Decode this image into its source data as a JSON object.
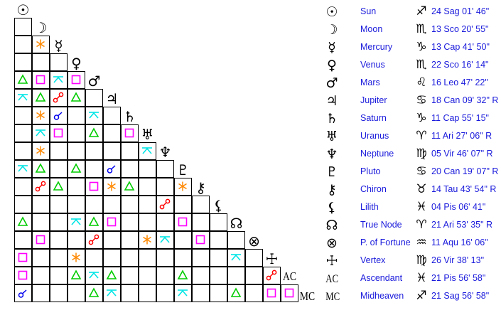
{
  "colors": {
    "trine": "#00cc00",
    "square": "#ff00ff",
    "quincunx": "#00e5e5",
    "opposition": "#ff0000",
    "conjunction": "#0000ee",
    "sextile": "#ff8800"
  },
  "grid": {
    "glyphs": [
      "☉",
      "☽",
      "☿",
      "♀",
      "♂",
      "♃",
      "♄",
      "♅",
      "♆",
      "♇",
      "⚷",
      "⚸",
      "☊",
      "⊗",
      "☩",
      "AC",
      "MC"
    ],
    "rows": [
      [
        ""
      ],
      [
        "",
        "sextile"
      ],
      [
        "",
        "",
        ""
      ],
      [
        "trine",
        "square",
        "quincunx",
        "square"
      ],
      [
        "quincunx",
        "trine",
        "opposition",
        "trine",
        ""
      ],
      [
        "",
        "sextile",
        "conjunction",
        "",
        "quincunx",
        ""
      ],
      [
        "",
        "quincunx",
        "square",
        "",
        "trine",
        "",
        "square"
      ],
      [
        "",
        "sextile",
        "",
        "",
        "",
        "",
        "",
        "quincunx"
      ],
      [
        "quincunx",
        "trine",
        "",
        "trine",
        "",
        "conjunction",
        "",
        "",
        ""
      ],
      [
        "",
        "opposition",
        "trine",
        "",
        "square",
        "sextile",
        "trine",
        "",
        "",
        "sextile"
      ],
      [
        "",
        "",
        "",
        "",
        "",
        "",
        "",
        "",
        "opposition",
        "",
        ""
      ],
      [
        "trine",
        "",
        "",
        "quincunx",
        "trine",
        "square",
        "",
        "",
        "",
        "square",
        "",
        ""
      ],
      [
        "",
        "square",
        "",
        "",
        "opposition",
        "",
        "",
        "sextile",
        "quincunx",
        "",
        "square",
        "",
        ""
      ],
      [
        "square",
        "",
        "",
        "sextile",
        "",
        "",
        "",
        "",
        "",
        "",
        "",
        "",
        "quincunx",
        ""
      ],
      [
        "square",
        "",
        "",
        "trine",
        "quincunx",
        "trine",
        "",
        "",
        "",
        "trine",
        "",
        "",
        "",
        "",
        "opposition"
      ],
      [
        "conjunction",
        "",
        "",
        "",
        "trine",
        "quincunx",
        "",
        "",
        "",
        "quincunx",
        "",
        "",
        "trine",
        "",
        "square",
        "square"
      ]
    ]
  },
  "planets": [
    {
      "glyph": "☉",
      "name": "Sun",
      "sign": "♐",
      "position": "24 Sag 01' 46\""
    },
    {
      "glyph": "☽",
      "name": "Moon",
      "sign": "♏",
      "position": "13 Sco 20' 55\""
    },
    {
      "glyph": "☿",
      "name": "Mercury",
      "sign": "♑",
      "position": "13 Cap 41' 50\""
    },
    {
      "glyph": "♀",
      "name": "Venus",
      "sign": "♏",
      "position": "22 Sco 16' 14\""
    },
    {
      "glyph": "♂",
      "name": "Mars",
      "sign": "♌",
      "position": "16 Leo 47' 22\""
    },
    {
      "glyph": "♃",
      "name": "Jupiter",
      "sign": "♋",
      "position": "18 Can 09' 32\" R"
    },
    {
      "glyph": "♄",
      "name": "Saturn",
      "sign": "♑",
      "position": "11 Cap 55' 15\""
    },
    {
      "glyph": "♅",
      "name": "Uranus",
      "sign": "♈",
      "position": "11 Ari 27' 06\" R"
    },
    {
      "glyph": "♆",
      "name": "Neptune",
      "sign": "♍",
      "position": "05 Vir 46' 07\" R"
    },
    {
      "glyph": "♇",
      "name": "Pluto",
      "sign": "♋",
      "position": "20 Can 19' 07\" R"
    },
    {
      "glyph": "⚷",
      "name": "Chiron",
      "sign": "♉",
      "position": "14 Tau 43' 54\" R"
    },
    {
      "glyph": "⚸",
      "name": "Lilith",
      "sign": "♓",
      "position": "04 Pis 06' 41\""
    },
    {
      "glyph": "☊",
      "name": "True Node",
      "sign": "♈",
      "position": "21 Ari 53' 35\" R"
    },
    {
      "glyph": "⊗",
      "name": "P. of Fortune",
      "sign": "♒",
      "position": "11 Aqu 16' 06\""
    },
    {
      "glyph": "☩",
      "name": "Vertex",
      "sign": "♍",
      "position": "26 Vir 38' 13\""
    },
    {
      "glyph": "AC",
      "name": "Ascendant",
      "sign": "♓",
      "position": "21 Pis 56' 58\""
    },
    {
      "glyph": "MC",
      "name": "Midheaven",
      "sign": "♐",
      "position": "21 Sag 56' 58\""
    }
  ]
}
